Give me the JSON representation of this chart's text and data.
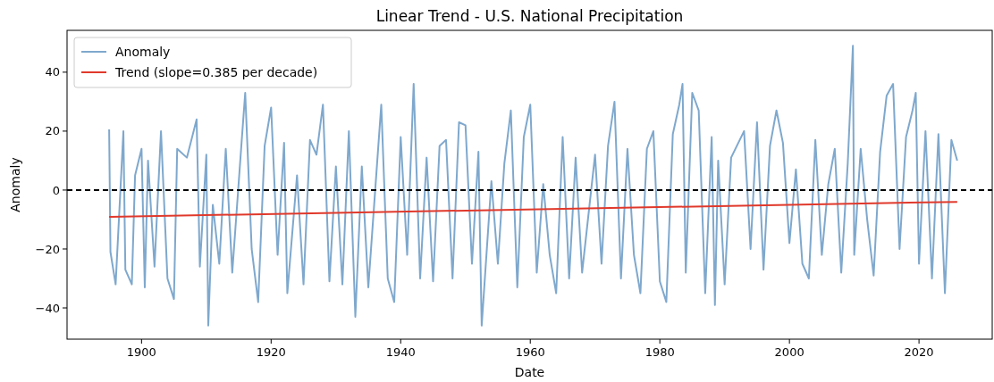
{
  "chart_data": {
    "type": "line",
    "title": "Linear Trend - U.S. National Precipitation",
    "xlabel": "Date",
    "ylabel": "Anomaly",
    "xlim": [
      1888.5,
      2031.3
    ],
    "ylim": [
      -50.6,
      54.2
    ],
    "xticks": [
      1900,
      1920,
      1940,
      1960,
      1980,
      2000,
      2020
    ],
    "yticks": [
      {
        "value": -40,
        "label": "−40"
      },
      {
        "value": -20,
        "label": "−20"
      },
      0,
      20,
      40
    ],
    "grid": false,
    "legend": "top left",
    "ref_lines": [
      {
        "axis": "y",
        "value": 0,
        "color": "#000000",
        "line_style": "dashed"
      }
    ],
    "series": [
      {
        "name": "Anomaly",
        "color": "#7fa8cd",
        "x": [
          1895,
          1895.2,
          1896,
          1897.2,
          1897.5,
          1898.5,
          1899,
          1900,
          1900.5,
          1901,
          1902,
          1903,
          1904,
          1905,
          1905.5,
          1907,
          1908.5,
          1909,
          1910,
          1910.3,
          1911,
          1912,
          1913,
          1914,
          1915.5,
          1916,
          1917,
          1918,
          1919,
          1920,
          1921,
          1922,
          1922.5,
          1924,
          1925,
          1926,
          1927,
          1928,
          1929,
          1930,
          1931,
          1932,
          1933,
          1934,
          1935,
          1937,
          1938,
          1939,
          1940,
          1941,
          1942,
          1943,
          1944,
          1945,
          1946,
          1947,
          1948,
          1949,
          1950,
          1951,
          1952,
          1952.5,
          1954,
          1955,
          1956,
          1957,
          1958,
          1959,
          1960,
          1961,
          1962,
          1963,
          1964,
          1965,
          1966,
          1967,
          1968,
          1970,
          1971,
          1972,
          1973,
          1974,
          1975,
          1976,
          1977,
          1978,
          1979,
          1980,
          1981,
          1982,
          1983,
          1983.5,
          1984,
          1985,
          1986,
          1987,
          1988,
          1988.5,
          1989,
          1990,
          1991,
          1993,
          1994,
          1995,
          1996,
          1997,
          1998,
          1999,
          2000,
          2001,
          2002,
          2003,
          2004,
          2005,
          2006,
          2007,
          2008,
          2009,
          2009.8,
          2010,
          2011,
          2012,
          2013,
          2014,
          2015,
          2016,
          2017,
          2018,
          2019,
          2019.5,
          2020,
          2021,
          2022,
          2023,
          2024,
          2025,
          2025.9
        ],
        "values": [
          20.6,
          -21,
          -32,
          20,
          -27,
          -32,
          5,
          14,
          -33,
          10,
          -26,
          20,
          -30,
          -37,
          14,
          11,
          24,
          -26,
          12,
          -46,
          -5,
          -25,
          14,
          -28,
          18,
          33,
          -20,
          -38,
          15,
          28,
          -22,
          16,
          -35,
          5,
          -32,
          17,
          12,
          29,
          -31,
          8,
          -32,
          20,
          -43,
          8,
          -33,
          29,
          -30,
          -38,
          18,
          -22,
          36,
          -30,
          11,
          -31,
          15,
          17,
          -30,
          23,
          22,
          -25,
          13,
          -46,
          3,
          -25,
          9,
          27,
          -33,
          18,
          29,
          -28,
          2,
          -22,
          -35,
          18,
          -30,
          11,
          -28,
          12,
          -25,
          15,
          30,
          -30,
          14,
          -22,
          -35,
          14,
          20,
          -31,
          -38,
          19,
          29,
          36,
          -28,
          33,
          27,
          -35,
          18,
          -39,
          10,
          -32,
          11,
          20,
          -20,
          23,
          -27,
          15,
          27,
          16,
          -18,
          7,
          -25,
          -30,
          17,
          -22,
          2,
          14,
          -28,
          9,
          49,
          -22,
          14,
          -10,
          -29,
          13,
          32,
          36,
          -20,
          18,
          27,
          33,
          -25,
          20,
          -30,
          19,
          -35,
          17,
          10
        ]
      },
      {
        "name": "Trend (slope=0.385 per decade)",
        "color": "#e0392b",
        "x": [
          1895,
          2025.9
        ],
        "values": [
          -9.1,
          -4.0
        ]
      }
    ]
  }
}
